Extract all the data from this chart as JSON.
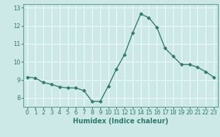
{
  "x": [
    0,
    1,
    2,
    3,
    4,
    5,
    6,
    7,
    8,
    9,
    10,
    11,
    12,
    13,
    14,
    15,
    16,
    17,
    18,
    19,
    20,
    21,
    22,
    23
  ],
  "y": [
    9.15,
    9.1,
    8.85,
    8.75,
    8.6,
    8.55,
    8.55,
    8.4,
    7.8,
    7.8,
    8.65,
    9.6,
    10.4,
    11.6,
    12.65,
    12.45,
    11.9,
    10.75,
    10.3,
    9.85,
    9.85,
    9.7,
    9.45,
    9.15
  ],
  "line_color": "#2d7a6e",
  "marker": "D",
  "markersize": 2.5,
  "linewidth": 1.0,
  "bg_color": "#cce9e8",
  "grid_color": "#f0fafa",
  "xlabel": "Humidex (Indice chaleur)",
  "xlabel_fontsize": 7,
  "xlim": [
    -0.5,
    23.5
  ],
  "ylim": [
    7.5,
    13.2
  ],
  "yticks": [
    8,
    9,
    10,
    11,
    12,
    13
  ],
  "xticks": [
    0,
    1,
    2,
    3,
    4,
    5,
    6,
    7,
    8,
    9,
    10,
    11,
    12,
    13,
    14,
    15,
    16,
    17,
    18,
    19,
    20,
    21,
    22,
    23
  ],
  "tick_fontsize": 6,
  "tick_color": "#2d7a6e",
  "axis_color": "#2d7a6e",
  "spine_color": "#5a9e8f"
}
